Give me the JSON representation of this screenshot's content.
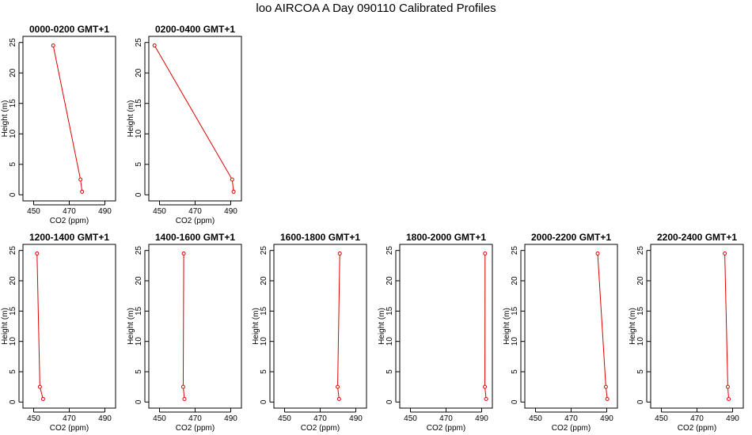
{
  "title": "loo AIRCOA A  Day 090110  Calibrated Profiles",
  "colors": {
    "line": "#dd0000",
    "axis": "#000000"
  },
  "chart_data": [
    {
      "type": "line",
      "title": "0000-0200 GMT+1",
      "xlabel": "CO2 (ppm)",
      "ylabel": "Height (m)",
      "xlim": [
        444,
        496
      ],
      "ylim": [
        -1,
        26
      ],
      "xticks": [
        450,
        470,
        490
      ],
      "yticks": [
        0,
        5,
        10,
        15,
        20,
        25
      ],
      "grid": false,
      "series": [
        {
          "x": [
            477.2,
            476.3,
            461.0
          ],
          "y": [
            0.5,
            2.5,
            24.5
          ]
        }
      ]
    },
    {
      "type": "line",
      "title": "0200-0400 GMT+1",
      "xlabel": "CO2 (ppm)",
      "ylabel": "Height (m)",
      "xlim": [
        444,
        496
      ],
      "ylim": [
        -1,
        26
      ],
      "xticks": [
        450,
        470,
        490
      ],
      "yticks": [
        0,
        5,
        10,
        15,
        20,
        25
      ],
      "grid": false,
      "series": [
        {
          "x": [
            491.6,
            490.8,
            447.2
          ],
          "y": [
            0.5,
            2.5,
            24.5
          ]
        }
      ]
    },
    {
      "type": "line",
      "title": "1200-1400 GMT+1",
      "xlabel": "CO2 (ppm)",
      "ylabel": "Height (m)",
      "xlim": [
        444,
        496
      ],
      "ylim": [
        -1,
        26
      ],
      "xticks": [
        450,
        470,
        490
      ],
      "yticks": [
        0,
        5,
        10,
        15,
        20,
        25
      ],
      "grid": false,
      "series": [
        {
          "x": [
            455.3,
            453.5,
            451.9
          ],
          "y": [
            0.5,
            2.5,
            24.5
          ]
        }
      ]
    },
    {
      "type": "line",
      "title": "1400-1600 GMT+1",
      "xlabel": "CO2 (ppm)",
      "ylabel": "Height (m)",
      "xlim": [
        444,
        496
      ],
      "ylim": [
        -1,
        26
      ],
      "xticks": [
        450,
        470,
        490
      ],
      "yticks": [
        0,
        5,
        10,
        15,
        20,
        25
      ],
      "grid": false,
      "series": [
        {
          "x": [
            464.0,
            463.3,
            463.6
          ],
          "y": [
            0.5,
            2.5,
            24.5
          ]
        }
      ]
    },
    {
      "type": "line",
      "title": "1600-1800 GMT+1",
      "xlabel": "CO2 (ppm)",
      "ylabel": "Height (m)",
      "xlim": [
        444,
        496
      ],
      "ylim": [
        -1,
        26
      ],
      "xticks": [
        450,
        470,
        490
      ],
      "yticks": [
        0,
        5,
        10,
        15,
        20,
        25
      ],
      "grid": false,
      "series": [
        {
          "x": [
            480.6,
            479.8,
            481.0
          ],
          "y": [
            0.5,
            2.5,
            24.5
          ]
        }
      ]
    },
    {
      "type": "line",
      "title": "1800-2000 GMT+1",
      "xlabel": "CO2 (ppm)",
      "ylabel": "Height (m)",
      "xlim": [
        444,
        496
      ],
      "ylim": [
        -1,
        26
      ],
      "xticks": [
        450,
        470,
        490
      ],
      "yticks": [
        0,
        5,
        10,
        15,
        20,
        25
      ],
      "grid": false,
      "series": [
        {
          "x": [
            492.5,
            491.8,
            491.9
          ],
          "y": [
            0.5,
            2.5,
            24.5
          ]
        }
      ]
    },
    {
      "type": "line",
      "title": "2000-2200 GMT+1",
      "xlabel": "CO2 (ppm)",
      "ylabel": "Height (m)",
      "xlim": [
        444,
        496
      ],
      "ylim": [
        -1,
        26
      ],
      "xticks": [
        450,
        470,
        490
      ],
      "yticks": [
        0,
        5,
        10,
        15,
        20,
        25
      ],
      "grid": false,
      "series": [
        {
          "x": [
            490.3,
            489.5,
            484.9
          ],
          "y": [
            0.5,
            2.5,
            24.5
          ]
        }
      ]
    },
    {
      "type": "line",
      "title": "2200-2400 GMT+1",
      "xlabel": "CO2 (ppm)",
      "ylabel": "Height (m)",
      "xlim": [
        444,
        496
      ],
      "ylim": [
        -1,
        26
      ],
      "xticks": [
        450,
        470,
        490
      ],
      "yticks": [
        0,
        5,
        10,
        15,
        20,
        25
      ],
      "grid": false,
      "series": [
        {
          "x": [
            487.8,
            487.3,
            485.6
          ],
          "y": [
            0.5,
            2.5,
            24.5
          ]
        }
      ]
    }
  ]
}
